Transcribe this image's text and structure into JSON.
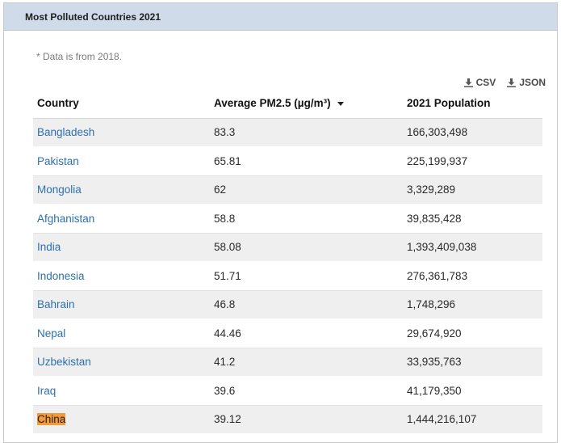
{
  "panel": {
    "title": "Most Polluted Countries 2021"
  },
  "note": "* Data is from 2018.",
  "exports": [
    {
      "label": "CSV",
      "icon": "download-icon"
    },
    {
      "label": "JSON",
      "icon": "download-icon"
    }
  ],
  "table": {
    "columns": [
      {
        "label": "Country"
      },
      {
        "label": "Average PM2.5 (µg/m³)",
        "sorted": "descending",
        "icon": "sort-desc-icon"
      },
      {
        "label": "2021 Population"
      }
    ],
    "rows": [
      {
        "country": "Bangladesh",
        "pm25": "83.3",
        "population": "166,303,498"
      },
      {
        "country": "Pakistan",
        "pm25": "65.81",
        "population": "225,199,937"
      },
      {
        "country": "Mongolia",
        "pm25": "62",
        "population": "3,329,289"
      },
      {
        "country": "Afghanistan",
        "pm25": "58.8",
        "population": "39,835,428"
      },
      {
        "country": "India",
        "pm25": "58.08",
        "population": "1,393,409,038"
      },
      {
        "country": "Indonesia",
        "pm25": "51.71",
        "population": "276,361,783"
      },
      {
        "country": "Bahrain",
        "pm25": "46.8",
        "population": "1,748,296"
      },
      {
        "country": "Nepal",
        "pm25": "44.46",
        "population": "29,674,920"
      },
      {
        "country": "Uzbekistan",
        "pm25": "41.2",
        "population": "33,935,763"
      },
      {
        "country": "Iraq",
        "pm25": "39.6",
        "population": "41,179,350"
      },
      {
        "country": "China",
        "pm25": "39.12",
        "population": "1,444,216,107",
        "highlighted": true
      }
    ]
  },
  "colors": {
    "header_bg": "#cfdbe9",
    "link": "#2e6fad",
    "highlight": "#f59a3b",
    "stripe": "#efefef"
  }
}
